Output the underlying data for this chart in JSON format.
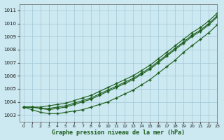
{
  "title": "Graphe pression niveau de la mer (hPa)",
  "bg_color": "#cce8f0",
  "grid_color": "#a0c8d8",
  "line_color": "#1a5c1a",
  "xlim": [
    -0.5,
    23
  ],
  "ylim": [
    1002.5,
    1011.5
  ],
  "yticks": [
    1003,
    1004,
    1005,
    1006,
    1007,
    1008,
    1009,
    1010,
    1011
  ],
  "xticks": [
    0,
    1,
    2,
    3,
    4,
    5,
    6,
    7,
    8,
    9,
    10,
    11,
    12,
    13,
    14,
    15,
    16,
    17,
    18,
    19,
    20,
    21,
    22,
    23
  ],
  "series_top": [
    1003.6,
    1003.6,
    1003.6,
    1003.7,
    1003.8,
    1003.9,
    1004.1,
    1004.3,
    1004.5,
    1004.8,
    1005.1,
    1005.4,
    1005.7,
    1006.0,
    1006.4,
    1006.8,
    1007.3,
    1007.8,
    1008.3,
    1008.8,
    1009.3,
    1009.7,
    1010.2,
    1010.8
  ],
  "series_mid1": [
    1003.6,
    1003.6,
    1003.5,
    1003.5,
    1003.6,
    1003.7,
    1003.9,
    1004.1,
    1004.3,
    1004.6,
    1004.9,
    1005.2,
    1005.5,
    1005.8,
    1006.2,
    1006.6,
    1007.1,
    1007.6,
    1008.1,
    1008.6,
    1009.1,
    1009.5,
    1010.0,
    1010.6
  ],
  "series_mid2": [
    1003.6,
    1003.6,
    1003.5,
    1003.4,
    1003.5,
    1003.6,
    1003.8,
    1004.0,
    1004.2,
    1004.5,
    1004.8,
    1005.1,
    1005.4,
    1005.7,
    1006.1,
    1006.5,
    1007.0,
    1007.5,
    1008.0,
    1008.5,
    1009.0,
    1009.4,
    1009.9,
    1010.5
  ],
  "series_low": [
    1003.6,
    1003.4,
    1003.2,
    1003.1,
    1003.1,
    1003.2,
    1003.3,
    1003.4,
    1003.6,
    1003.8,
    1004.0,
    1004.3,
    1004.6,
    1004.9,
    1005.3,
    1005.7,
    1006.2,
    1006.7,
    1007.2,
    1007.8,
    1008.3,
    1008.8,
    1009.3,
    1009.9
  ]
}
